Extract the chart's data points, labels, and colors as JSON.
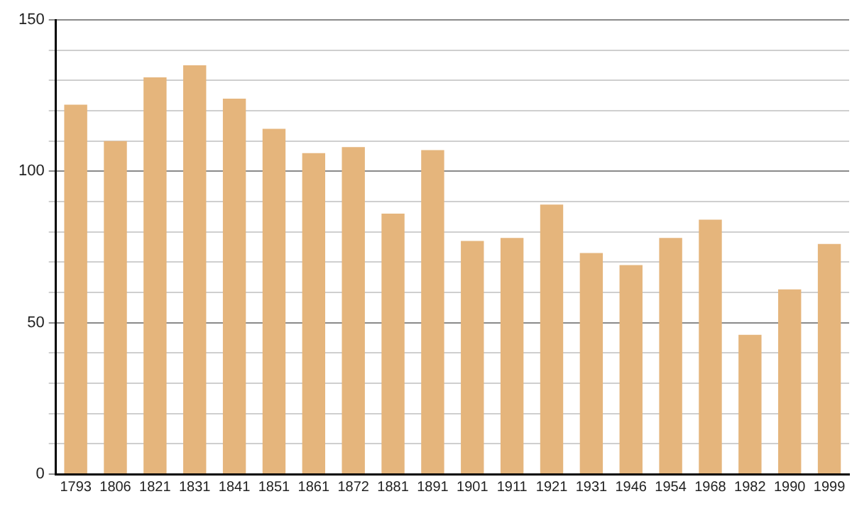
{
  "chart_data": {
    "type": "bar",
    "categories": [
      "1793",
      "1806",
      "1821",
      "1831",
      "1841",
      "1851",
      "1861",
      "1872",
      "1881",
      "1891",
      "1901",
      "1911",
      "1921",
      "1931",
      "1946",
      "1954",
      "1968",
      "1982",
      "1990",
      "1999"
    ],
    "values": [
      122,
      110,
      131,
      135,
      124,
      114,
      106,
      108,
      86,
      107,
      77,
      78,
      89,
      73,
      69,
      78,
      84,
      46,
      61,
      76
    ],
    "color": "#e5b57c",
    "ylim": [
      0,
      150
    ],
    "yticks": [
      0,
      {
        "value": 10,
        "label": null
      },
      {
        "value": 20,
        "label": null
      },
      {
        "value": 30,
        "label": null
      },
      {
        "value": 40,
        "label": null
      },
      50,
      {
        "value": 60,
        "label": null
      },
      {
        "value": 70,
        "label": null
      },
      {
        "value": 80,
        "label": null
      },
      {
        "value": 90,
        "label": null
      },
      100,
      {
        "value": 110,
        "label": null
      },
      {
        "value": 120,
        "label": null
      },
      {
        "value": 130,
        "label": null
      },
      {
        "value": 140,
        "label": null
      },
      150
    ],
    "grid": "y"
  }
}
